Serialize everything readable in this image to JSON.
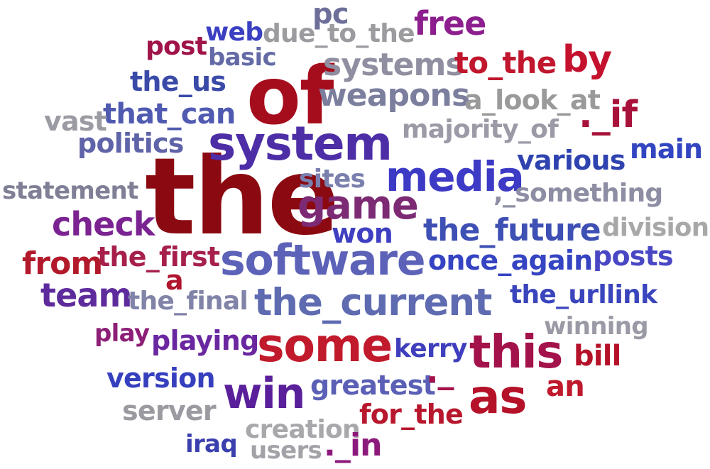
{
  "word_cloud": {
    "words": [
      {
        "text": "the",
        "color": "#8b0a12"
      },
      {
        "text": "of",
        "color": "#a60d1c"
      },
      {
        "text": "system",
        "color": "#4d2ea6"
      },
      {
        "text": "software",
        "color": "#5c62b8"
      },
      {
        "text": "the_current",
        "color": "#5f6bb1"
      },
      {
        "text": "media",
        "color": "#3d3ac6"
      },
      {
        "text": "some",
        "color": "#c11a2c"
      },
      {
        "text": "this",
        "color": "#a3124a"
      },
      {
        "text": "win",
        "color": "#5a1f9a"
      },
      {
        "text": "game",
        "color": "#7c2a74"
      },
      {
        "text": "as",
        "color": "#b5122a"
      },
      {
        "text": "the_future",
        "color": "#3e50b4"
      },
      {
        "text": "weapons",
        "color": "#7c7e9e"
      },
      {
        "text": "systems",
        "color": "#8f8fa1"
      },
      {
        "text": "to_the",
        "color": "#c1162d"
      },
      {
        "text": "by",
        "color": "#c4122e"
      },
      {
        "text": "free",
        "color": "#8c1f8d"
      },
      {
        "text": "check",
        "color": "#7a2391"
      },
      {
        "text": "team",
        "color": "#5e2b9c"
      },
      {
        "text": "from",
        "color": "#b21a2b"
      },
      {
        "text": "the_first",
        "color": "#a6204b"
      },
      {
        "text": "once_again",
        "color": "#3544c2"
      },
      {
        "text": "posts",
        "color": "#4a47c4"
      },
      {
        "text": "various",
        "color": "#2f43b0"
      },
      {
        "text": "main",
        "color": "#3345c1"
      },
      {
        "text": "._if",
        "color": "#a8123a"
      },
      {
        "text": "a_look_at",
        "color": "#9a9a9a"
      },
      {
        "text": "majority_of",
        "color": "#9c9aa6"
      },
      {
        "text": ",_something",
        "color": "#8d8ea3"
      },
      {
        "text": "division",
        "color": "#a8a8a8"
      },
      {
        "text": "statement",
        "color": "#7f7f96"
      },
      {
        "text": "sites",
        "color": "#7a7fae"
      },
      {
        "text": "won",
        "color": "#3f3fc2"
      },
      {
        "text": "the_us",
        "color": "#3a4aa8"
      },
      {
        "text": "that_can",
        "color": "#4f5ab0"
      },
      {
        "text": "vast",
        "color": "#9b9ba3"
      },
      {
        "text": "politics",
        "color": "#5f63a8"
      },
      {
        "text": "post",
        "color": "#a0144a"
      },
      {
        "text": "web",
        "color": "#3b3fc2"
      },
      {
        "text": "basic",
        "color": "#636aa6"
      },
      {
        "text": "pc",
        "color": "#6d6f99"
      },
      {
        "text": "due_to_the",
        "color": "#9b9ba0"
      },
      {
        "text": "a",
        "color": "#b0142e"
      },
      {
        "text": "the_final",
        "color": "#8184a8"
      },
      {
        "text": "play",
        "color": "#8d1f76"
      },
      {
        "text": "playing",
        "color": "#6a27a0"
      },
      {
        "text": "version",
        "color": "#3640be"
      },
      {
        "text": "server",
        "color": "#9a9aa0"
      },
      {
        "text": "greatest",
        "color": "#5b60b6"
      },
      {
        "text": "kerry",
        "color": "#3f3fbe"
      },
      {
        "text": "the_urllink",
        "color": "#3a44bc"
      },
      {
        "text": "winning",
        "color": "#9a9aa6"
      },
      {
        "text": "bill",
        "color": "#b5122a"
      },
      {
        "text": "an",
        "color": "#c0182c"
      },
      {
        "text": "._",
        "color": "#a5124a"
      },
      {
        "text": "for_the",
        "color": "#b8182e"
      },
      {
        "text": "creation",
        "color": "#a8a8ac"
      },
      {
        "text": "users",
        "color": "#a2a2a8"
      },
      {
        "text": "iraq",
        "color": "#3b3fae"
      },
      {
        "text": "._in",
        "color": "#8c1a7c"
      }
    ]
  }
}
